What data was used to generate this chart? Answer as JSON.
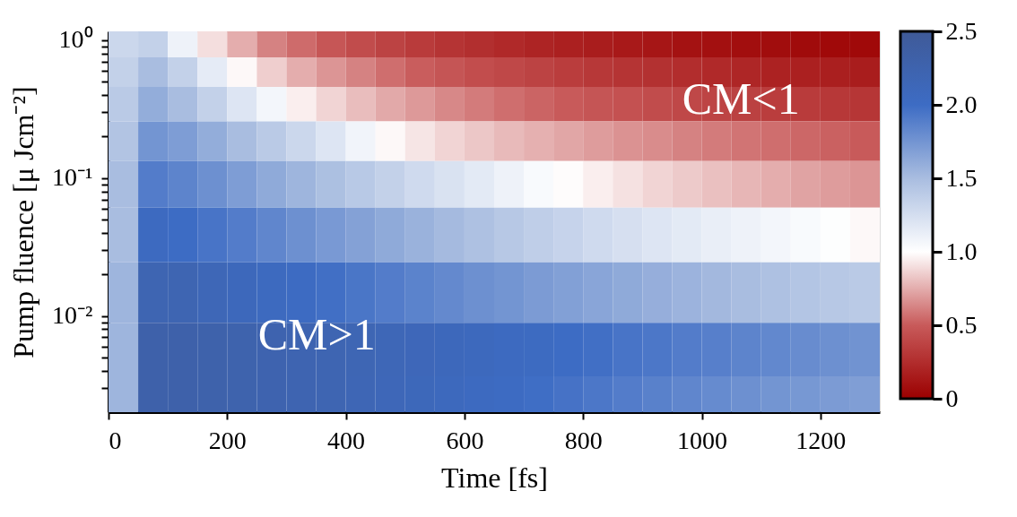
{
  "chart_data": {
    "type": "heatmap",
    "xlabel": "Time [fs]",
    "ylabel": "Pump fluence  [μ Jcm⁻²]",
    "log": "y",
    "x": [
      25,
      75,
      125,
      175,
      225,
      275,
      325,
      375,
      425,
      475,
      525,
      575,
      625,
      675,
      725,
      775,
      825,
      875,
      925,
      975,
      1025,
      1075,
      1125,
      1175,
      1225,
      1275
    ],
    "y": [
      0.94,
      0.6,
      0.35,
      0.19,
      0.093,
      0.04,
      0.015,
      0.0053,
      0.0025
    ],
    "cells": [
      [
        1.3,
        1.35,
        1.1,
        0.9,
        0.75,
        0.62,
        0.55,
        0.48,
        0.42,
        0.37,
        0.33,
        0.29,
        0.26,
        0.23,
        0.2,
        0.18,
        0.16,
        0.14,
        0.12,
        0.1,
        0.09,
        0.08,
        0.07,
        0.06,
        0.05,
        0.05
      ],
      [
        1.35,
        1.5,
        1.35,
        1.15,
        0.98,
        0.85,
        0.75,
        0.68,
        0.62,
        0.56,
        0.51,
        0.47,
        0.43,
        0.4,
        0.37,
        0.34,
        0.31,
        0.29,
        0.27,
        0.25,
        0.23,
        0.21,
        0.19,
        0.18,
        0.17,
        0.16
      ],
      [
        1.4,
        1.6,
        1.5,
        1.35,
        1.2,
        1.07,
        0.95,
        0.87,
        0.8,
        0.74,
        0.69,
        0.64,
        0.6,
        0.56,
        0.53,
        0.5,
        0.47,
        0.45,
        0.42,
        0.4,
        0.38,
        0.36,
        0.34,
        0.33,
        0.31,
        0.3
      ],
      [
        1.45,
        1.75,
        1.7,
        1.6,
        1.5,
        1.4,
        1.3,
        1.2,
        1.08,
        0.98,
        0.92,
        0.87,
        0.83,
        0.79,
        0.76,
        0.73,
        0.7,
        0.67,
        0.65,
        0.62,
        0.6,
        0.58,
        0.56,
        0.54,
        0.52,
        0.5
      ],
      [
        1.5,
        1.9,
        1.85,
        1.78,
        1.7,
        1.62,
        1.55,
        1.48,
        1.41,
        1.35,
        1.28,
        1.22,
        1.16,
        1.1,
        1.04,
        0.99,
        0.95,
        0.91,
        0.87,
        0.84,
        0.81,
        0.78,
        0.75,
        0.72,
        0.7,
        0.68
      ],
      [
        1.5,
        2.05,
        2.0,
        1.95,
        1.9,
        1.84,
        1.78,
        1.72,
        1.67,
        1.62,
        1.57,
        1.52,
        1.47,
        1.42,
        1.37,
        1.33,
        1.28,
        1.24,
        1.2,
        1.16,
        1.13,
        1.1,
        1.07,
        1.04,
        1.01,
        0.98
      ],
      [
        1.55,
        2.2,
        2.2,
        2.15,
        2.1,
        2.06,
        2.02,
        1.98,
        1.94,
        1.9,
        1.86,
        1.82,
        1.78,
        1.75,
        1.71,
        1.68,
        1.65,
        1.62,
        1.59,
        1.56,
        1.53,
        1.5,
        1.47,
        1.44,
        1.42,
        1.4
      ],
      [
        1.55,
        2.3,
        2.3,
        2.28,
        2.26,
        2.24,
        2.22,
        2.2,
        2.18,
        2.15,
        2.13,
        2.1,
        2.08,
        2.05,
        2.03,
        2.0,
        1.98,
        1.95,
        1.93,
        1.9,
        1.88,
        1.85,
        1.83,
        1.8,
        1.78,
        1.76
      ],
      [
        1.55,
        2.3,
        2.3,
        2.28,
        2.26,
        2.24,
        2.22,
        2.2,
        2.17,
        2.14,
        2.11,
        2.08,
        2.05,
        2.02,
        1.99,
        1.96,
        1.93,
        1.9,
        1.87,
        1.84,
        1.81,
        1.78,
        1.75,
        1.73,
        1.71,
        1.69
      ]
    ],
    "colors": [
      "#9b0000",
      "#c85a5a",
      "#ffffff",
      "#a9bde0",
      "#3d6cc4",
      "#3f5a98"
    ],
    "xlim": [
      0,
      1300
    ],
    "xticks": [
      0,
      200,
      400,
      600,
      800,
      1000,
      1200
    ],
    "ylim": [
      0.002,
      1.16
    ],
    "yticks": [
      {
        "value": 1,
        "label": "10⁰"
      },
      {
        "value": 0.1,
        "label": "10⁻¹"
      },
      {
        "value": 0.01,
        "label": "10⁻²"
      },
      {
        "value": 0.9,
        "label": null
      },
      {
        "value": 0.8,
        "label": null
      },
      {
        "value": 0.7,
        "label": null
      },
      {
        "value": 0.6,
        "label": null
      },
      {
        "value": 0.5,
        "label": null
      },
      {
        "value": 0.4,
        "label": null
      },
      {
        "value": 0.3,
        "label": null
      },
      {
        "value": 0.2,
        "label": null
      },
      {
        "value": 0.09,
        "label": null
      },
      {
        "value": 0.08,
        "label": null
      },
      {
        "value": 0.07,
        "label": null
      },
      {
        "value": 0.06,
        "label": null
      },
      {
        "value": 0.05,
        "label": null
      },
      {
        "value": 0.04,
        "label": null
      },
      {
        "value": 0.03,
        "label": null
      },
      {
        "value": 0.02,
        "label": null
      },
      {
        "value": 0.009,
        "label": null
      },
      {
        "value": 0.008,
        "label": null
      },
      {
        "value": 0.007,
        "label": null
      },
      {
        "value": 0.006,
        "label": null
      },
      {
        "value": 0.005,
        "label": null
      },
      {
        "value": 0.004,
        "label": null
      },
      {
        "value": 0.003,
        "label": null
      }
    ],
    "clim": [
      0,
      2.5
    ],
    "cticks": [
      0,
      {
        "value": 0.5,
        "label": "0.5"
      },
      {
        "value": 1,
        "label": "1.0"
      },
      {
        "value": 1.5,
        "label": "1.5"
      },
      {
        "value": 2,
        "label": "2.0"
      },
      {
        "value": 2.5,
        "label": "2.5"
      }
    ],
    "annotations": [
      "CM>1",
      "CM<1"
    ]
  }
}
